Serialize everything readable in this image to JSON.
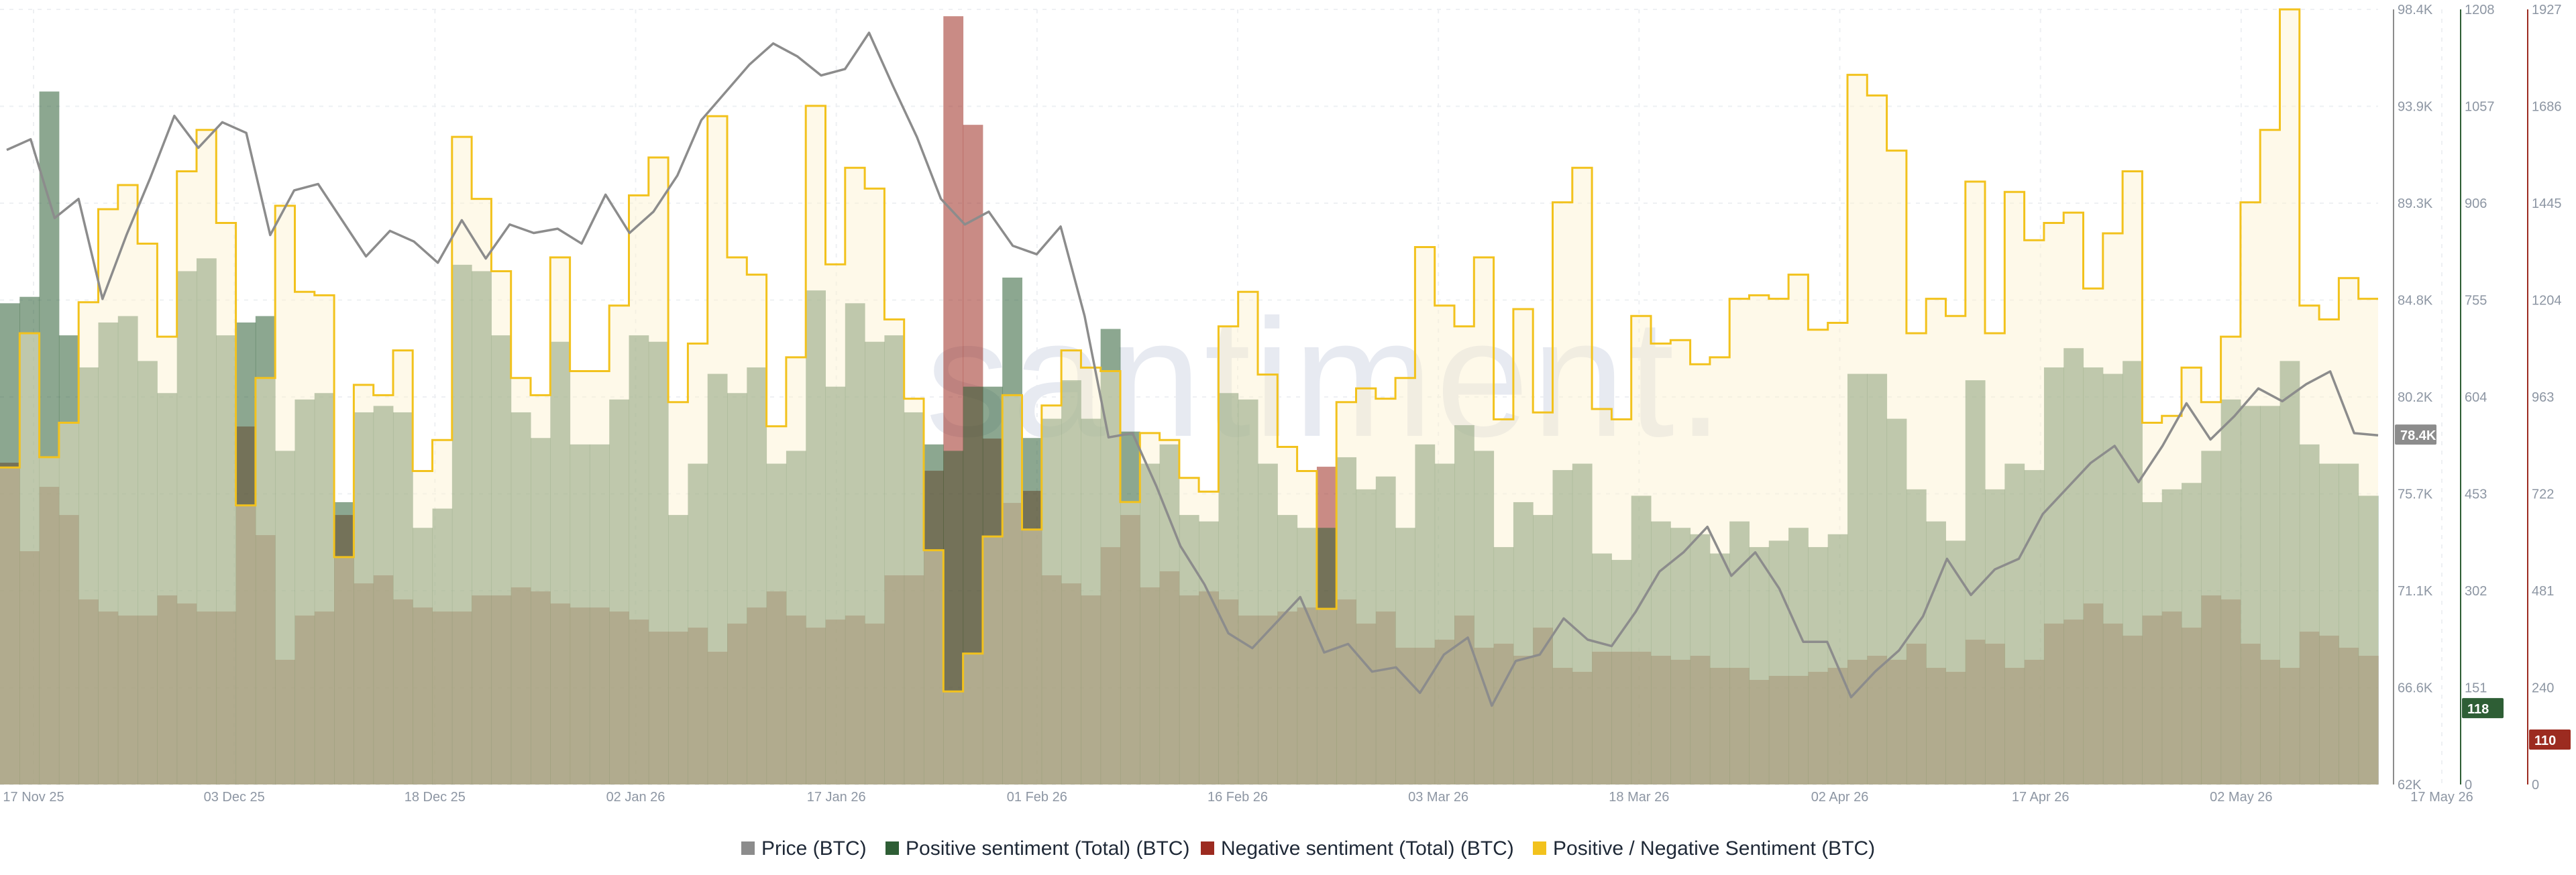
{
  "chart_data": {
    "type": "bar",
    "watermark": "santiment.",
    "colors": {
      "price": "#8c8c8c",
      "positive": "#2e5e35",
      "negative": "#9c2b20",
      "ratio": "#f2c21d",
      "ratio_fill": "#fdf2cf"
    },
    "x_ticks": [
      "17 Nov 25",
      "03 Dec 25",
      "18 Dec 25",
      "02 Jan 26",
      "17 Jan 26",
      "01 Feb 26",
      "16 Feb 26",
      "03 Mar 26",
      "18 Mar 26",
      "02 Apr 26",
      "17 Apr 26",
      "02 May 26",
      "17 May 26"
    ],
    "grid": true,
    "legend_position": "bottom",
    "axes": {
      "price": {
        "ticks": [
          "98.4K",
          "93.9K",
          "89.3K",
          "84.8K",
          "80.2K",
          "75.7K",
          "71.1K",
          "66.6K",
          "62K"
        ],
        "ylim": [
          62000,
          98400
        ],
        "current_label": "78.4K",
        "current": 78400
      },
      "positive": {
        "ticks": [
          "1208",
          "1057",
          "906",
          "755",
          "604",
          "453",
          "302",
          "151",
          "0"
        ],
        "ylim": [
          0,
          1208
        ],
        "current_label": "118",
        "current": 118
      },
      "negative": {
        "ticks": [
          "1927",
          "1686",
          "1445",
          "1204",
          "963",
          "722",
          "481",
          "240",
          "0"
        ],
        "ylim": [
          0,
          1927
        ],
        "current_label": "110",
        "current": 110
      }
    },
    "ratio_ylim": [
      0,
      1.8
    ],
    "series": [
      {
        "name": "Price (BTC)",
        "key": "price",
        "axis": "price",
        "values": [
          91800,
          92300,
          88600,
          89500,
          84800,
          87800,
          90500,
          93400,
          91900,
          93100,
          92600,
          87800,
          89900,
          90200,
          88500,
          86800,
          88000,
          87500,
          86500,
          88500,
          86700,
          88300,
          87900,
          88100,
          87400,
          89700,
          87900,
          88900,
          90600,
          93200,
          94500,
          95800,
          96800,
          96200,
          95300,
          95600,
          97300,
          94800,
          92400,
          89500,
          88300,
          88900,
          87300,
          86900,
          88200,
          84000,
          78300,
          78500,
          76000,
          73200,
          71400,
          69100,
          68400,
          69600,
          70800,
          68200,
          68600,
          67300,
          67500,
          66300,
          68100,
          68900,
          65700,
          67800,
          68100,
          69800,
          68800,
          68500,
          70100,
          72000,
          72900,
          74100,
          71800,
          72900,
          71200,
          68700,
          68700,
          66100,
          67300,
          68300,
          69900,
          72600,
          70900,
          72100,
          72600,
          74700,
          75900,
          77100,
          77900,
          76200,
          77900,
          79900,
          78200,
          79300,
          80600,
          80000,
          80800,
          81400,
          78500,
          78400
        ]
      },
      {
        "name": "Positive sentiment (Total) (BTC)",
        "key": "positive",
        "axis": "positive",
        "values": [
          750,
          760,
          1080,
          700,
          650,
          720,
          730,
          660,
          610,
          800,
          820,
          700,
          720,
          730,
          520,
          600,
          610,
          440,
          580,
          590,
          580,
          400,
          430,
          810,
          800,
          700,
          580,
          540,
          690,
          530,
          530,
          600,
          700,
          690,
          420,
          500,
          640,
          610,
          650,
          500,
          520,
          770,
          620,
          750,
          690,
          700,
          580,
          530,
          520,
          620,
          620,
          790,
          540,
          570,
          630,
          570,
          710,
          550,
          500,
          530,
          420,
          410,
          610,
          600,
          500,
          420,
          400,
          400,
          510,
          460,
          480,
          400,
          530,
          500,
          560,
          520,
          370,
          440,
          420,
          490,
          500,
          360,
          350,
          450,
          410,
          400,
          390,
          360,
          410,
          370,
          380,
          400,
          370,
          390,
          640,
          640,
          570,
          460,
          410,
          380,
          630,
          460,
          500,
          490,
          650,
          680,
          650,
          640,
          660,
          440,
          460,
          470,
          520,
          600,
          590,
          590,
          660,
          530,
          500,
          500,
          450
        ]
      },
      {
        "name": "Negative sentiment (Total) (BTC)",
        "key": "negative",
        "axis": "negative",
        "values": [
          800,
          580,
          740,
          670,
          460,
          430,
          420,
          420,
          470,
          450,
          430,
          430,
          890,
          620,
          310,
          420,
          430,
          670,
          500,
          520,
          460,
          440,
          430,
          430,
          470,
          470,
          490,
          480,
          450,
          440,
          440,
          430,
          410,
          380,
          380,
          390,
          330,
          400,
          440,
          480,
          420,
          390,
          410,
          420,
          400,
          520,
          520,
          780,
          1910,
          1640,
          860,
          700,
          730,
          520,
          500,
          470,
          590,
          670,
          490,
          530,
          470,
          480,
          460,
          420,
          420,
          430,
          440,
          790,
          460,
          400,
          430,
          340,
          340,
          360,
          420,
          340,
          350,
          320,
          390,
          290,
          280,
          330,
          330,
          330,
          320,
          310,
          320,
          290,
          290,
          260,
          270,
          270,
          280,
          290,
          310,
          320,
          310,
          350,
          290,
          280,
          360,
          350,
          290,
          310,
          400,
          410,
          450,
          400,
          370,
          420,
          430,
          390,
          470,
          460,
          350,
          310,
          290,
          380,
          370,
          340,
          320
        ]
      },
      {
        "name": "Positive / Negative Sentiment (BTC)",
        "key": "ratio",
        "axis": "ratio",
        "values": [
          0.92,
          1.31,
          0.95,
          1.05,
          1.4,
          1.67,
          1.74,
          1.57,
          1.3,
          1.78,
          1.9,
          1.63,
          0.81,
          1.18,
          1.68,
          1.43,
          1.42,
          0.66,
          1.16,
          1.13,
          1.26,
          0.91,
          1.0,
          1.88,
          1.7,
          1.49,
          1.18,
          1.13,
          1.53,
          1.2,
          1.2,
          1.39,
          1.71,
          1.82,
          1.11,
          1.28,
          1.94,
          1.53,
          1.48,
          1.04,
          1.24,
          1.97,
          1.51,
          1.79,
          1.73,
          1.35,
          1.12,
          0.68,
          0.27,
          0.38,
          0.72,
          1.13,
          0.74,
          1.1,
          1.26,
          1.21,
          1.2,
          0.82,
          1.02,
          1.0,
          0.89,
          0.85,
          1.33,
          1.43,
          1.19,
          0.98,
          0.91,
          0.51,
          1.11,
          1.15,
          1.12,
          1.18,
          1.56,
          1.39,
          1.33,
          1.53,
          1.06,
          1.38,
          1.08,
          1.69,
          1.79,
          1.09,
          1.06,
          1.36,
          1.28,
          1.29,
          1.22,
          1.24,
          1.41,
          1.42,
          1.41,
          1.48,
          1.32,
          1.34,
          2.06,
          2.0,
          1.84,
          1.31,
          1.41,
          1.36,
          1.75,
          1.31,
          1.72,
          1.58,
          1.63,
          1.66,
          1.44,
          1.6,
          1.78,
          1.05,
          1.07,
          1.21,
          1.11,
          1.3,
          1.69,
          1.9,
          2.28,
          1.39,
          1.35,
          1.47,
          1.41
        ]
      }
    ]
  }
}
